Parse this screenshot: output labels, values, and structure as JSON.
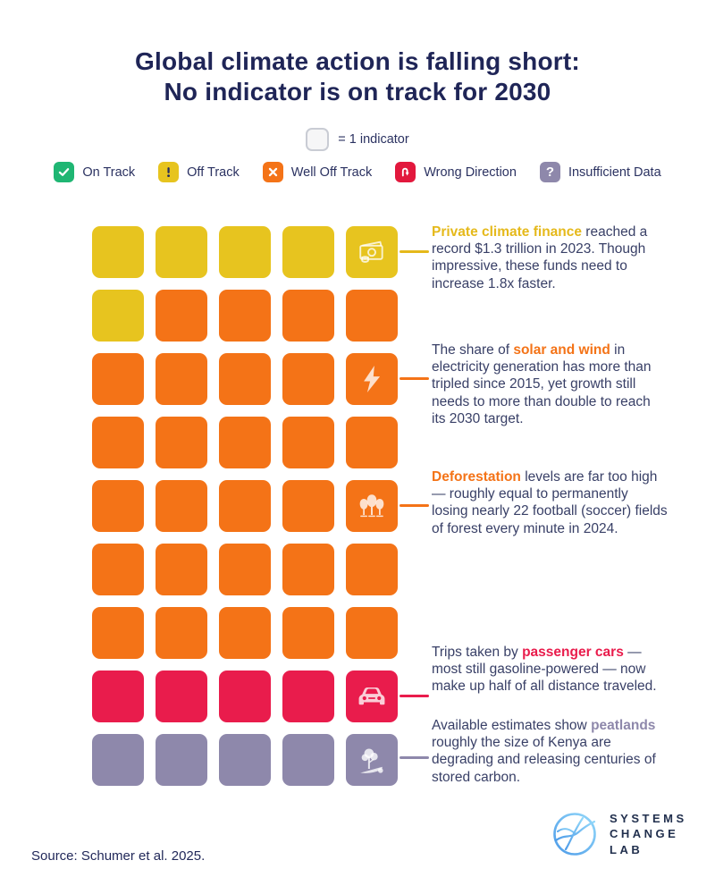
{
  "title": {
    "line1": "Global climate action is falling short:",
    "line2": "No indicator is on track for 2030"
  },
  "unit_legend": {
    "label": "= 1 indicator"
  },
  "status_legend": [
    {
      "label": "On Track",
      "icon": "check-icon",
      "color": "#1FB673",
      "glyph_color": "#ffffff"
    },
    {
      "label": "Off Track",
      "icon": "exclamation-icon",
      "color": "#E7C41F",
      "glyph_color": "#252C5E"
    },
    {
      "label": "Well Off Track",
      "icon": "x-icon",
      "color": "#F47317",
      "glyph_color": "#ffffff"
    },
    {
      "label": "Wrong Direction",
      "icon": "u-turn-down-arrow-icon",
      "color": "#E2183D",
      "glyph_color": "#ffffff"
    },
    {
      "label": "Insufficient Data",
      "icon": "question-icon",
      "color": "#8E88AB",
      "glyph_color": "#ffffff"
    }
  ],
  "chart_data": {
    "type": "waffle",
    "title": "Global climate action is falling short: No indicator is on track for 2030",
    "unit": "1 square = 1 indicator",
    "columns": 5,
    "total_indicators": 45,
    "status_colors": {
      "off_track": "#E7C41F",
      "well_off_track": "#F47317",
      "wrong_direction": "#E91C4C",
      "insufficient_data": "#8E88AB"
    },
    "counts": {
      "on_track": 0,
      "off_track": 6,
      "well_off_track": 29,
      "wrong_direction": 5,
      "insufficient_data": 5
    },
    "rows": [
      {
        "statuses": [
          "off_track",
          "off_track",
          "off_track",
          "off_track",
          "off_track"
        ],
        "icon": "money-icon"
      },
      {
        "statuses": [
          "off_track",
          "well_off_track",
          "well_off_track",
          "well_off_track",
          "well_off_track"
        ]
      },
      {
        "statuses": [
          "well_off_track",
          "well_off_track",
          "well_off_track",
          "well_off_track",
          "well_off_track"
        ],
        "icon": "lightning-icon"
      },
      {
        "statuses": [
          "well_off_track",
          "well_off_track",
          "well_off_track",
          "well_off_track",
          "well_off_track"
        ]
      },
      {
        "statuses": [
          "well_off_track",
          "well_off_track",
          "well_off_track",
          "well_off_track",
          "well_off_track"
        ],
        "icon": "trees-icon"
      },
      {
        "statuses": [
          "well_off_track",
          "well_off_track",
          "well_off_track",
          "well_off_track",
          "well_off_track"
        ]
      },
      {
        "statuses": [
          "well_off_track",
          "well_off_track",
          "well_off_track",
          "well_off_track",
          "well_off_track"
        ]
      },
      {
        "statuses": [
          "wrong_direction",
          "wrong_direction",
          "wrong_direction",
          "wrong_direction",
          "wrong_direction"
        ],
        "icon": "car-icon"
      },
      {
        "statuses": [
          "insufficient_data",
          "insufficient_data",
          "insufficient_data",
          "insufficient_data",
          "insufficient_data"
        ],
        "icon": "peatland-icon"
      }
    ]
  },
  "annotations": [
    {
      "before": "",
      "highlight": "Private climate finance",
      "after": " reached a record $1.3 trillion in 2023. Though impressive, these funds need to increase 1.8x faster.",
      "highlight_color": "#E5B91B"
    },
    {
      "before": "The share of ",
      "highlight": "solar and wind",
      "after": " in electricity generation has more than tripled since 2015, yet growth still needs to more than double to reach its 2030 target.",
      "highlight_color": "#F47317"
    },
    {
      "before": "",
      "highlight": "Deforestation",
      "after": " levels are far too high — roughly equal to permanently losing nearly 22 football (soccer) fields of forest every minute in 2024.",
      "highlight_color": "#F47317"
    },
    {
      "before": "Trips taken by ",
      "highlight": "passenger cars",
      "after": " — most still gasoline-powered — now make up half of all distance traveled.",
      "highlight_color": "#E91C4C"
    },
    {
      "before": "Available estimates show ",
      "highlight": "peatlands",
      "after": " roughly the size of Kenya are degrading and releasing centuries of stored carbon.",
      "highlight_color": "#8E88AB"
    }
  ],
  "source": "Source: Schumer et al. 2025.",
  "logo": {
    "line1": "SYSTEMS",
    "line2": "CHANGE",
    "line3": "LAB",
    "accent_color": "#5FB0EC"
  }
}
